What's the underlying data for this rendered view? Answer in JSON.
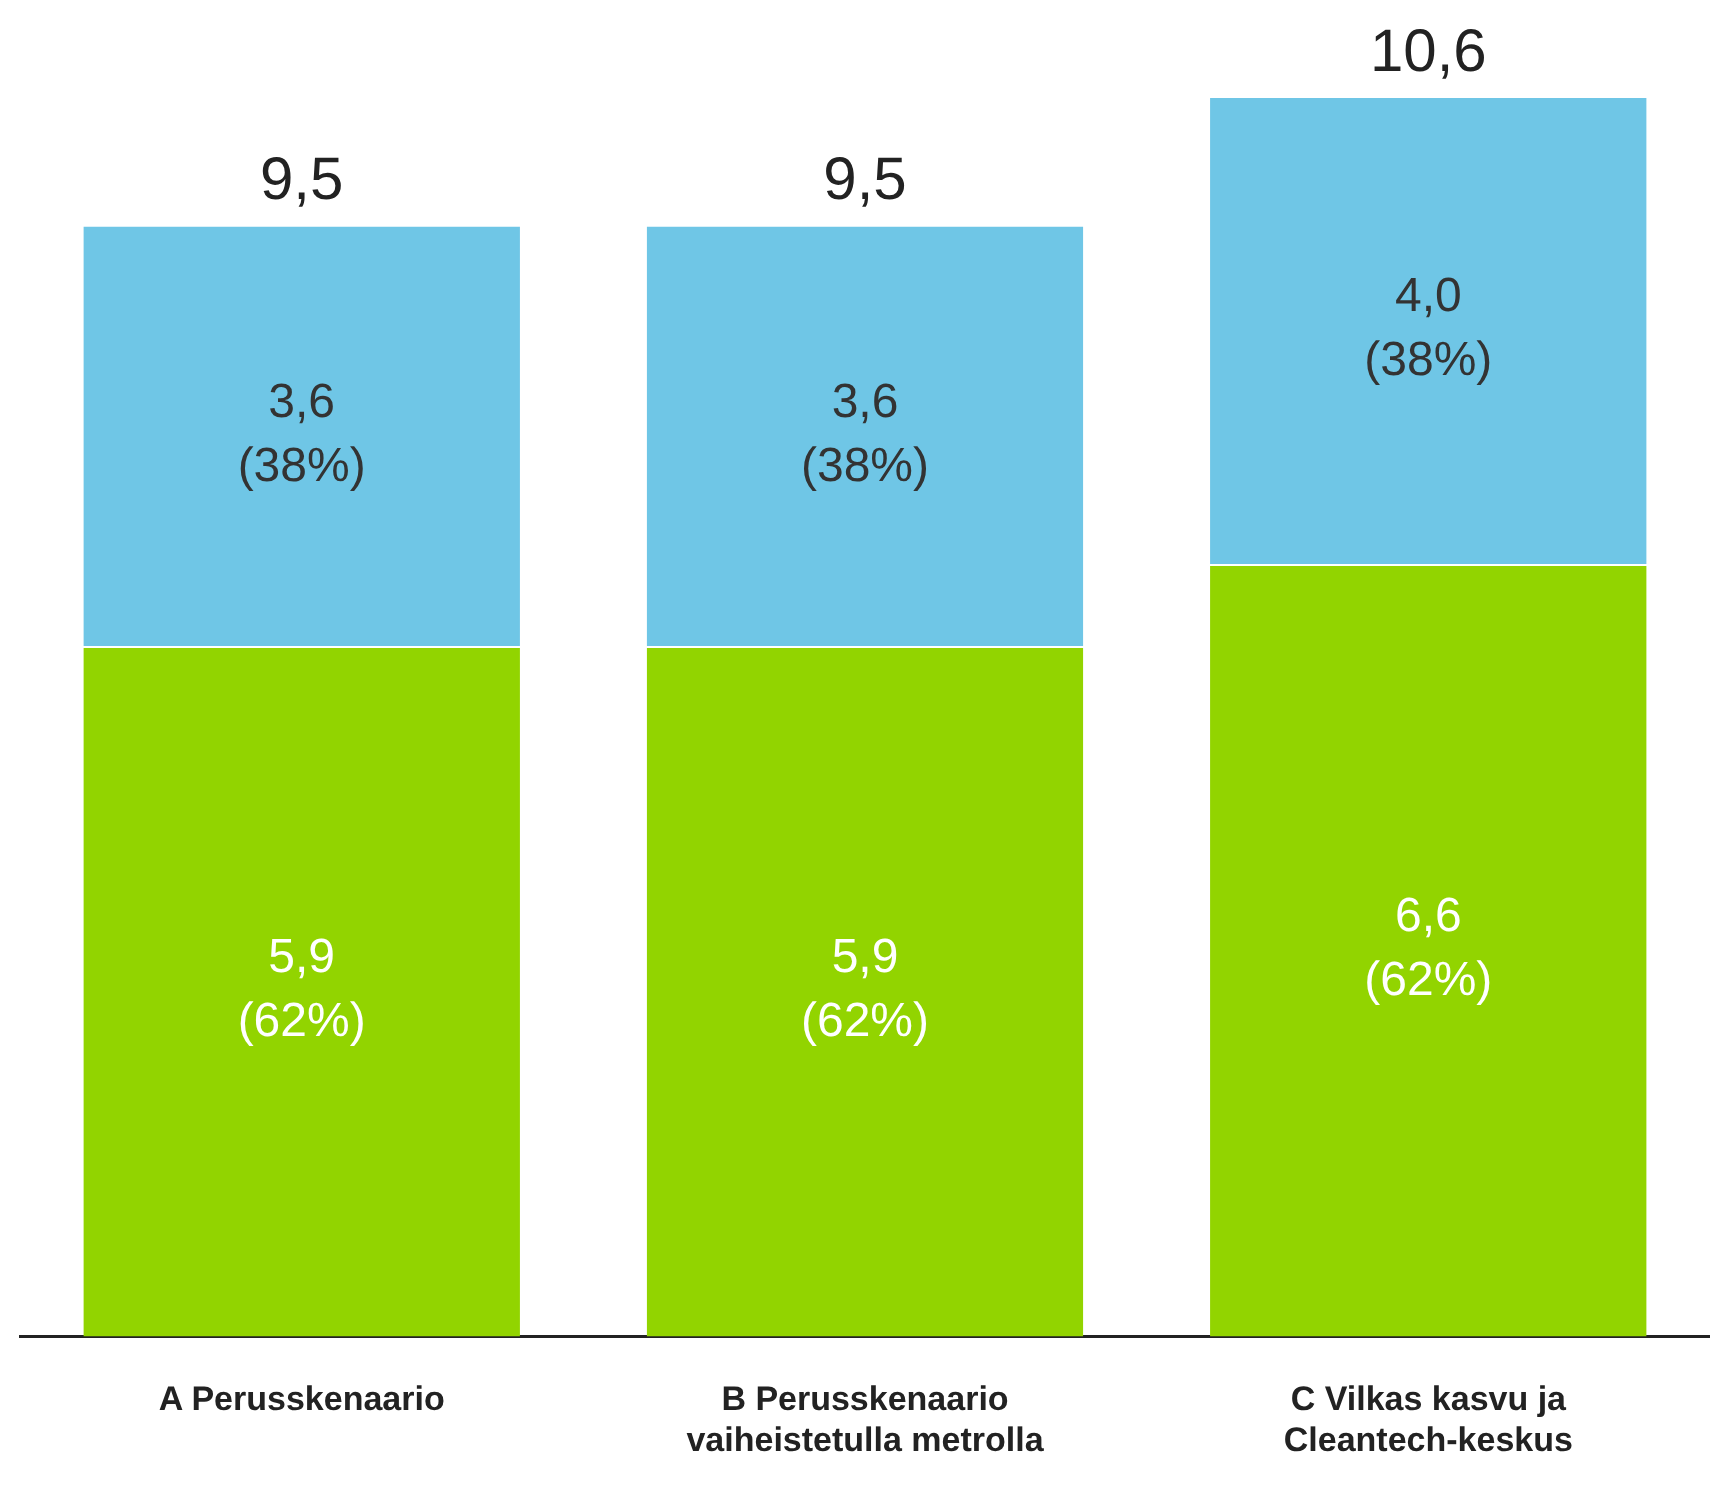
{
  "chart_data": {
    "type": "bar",
    "stacked": true,
    "categories": [
      "A Perusskenaario",
      "B Perusskenaario vaiheistetulla metrolla",
      "C Vilkas kasvu ja Cleantech-keskus"
    ],
    "series": [
      {
        "color": "#92d400",
        "values": [
          5.9,
          5.9,
          6.6
        ],
        "value_labels": [
          "5,9\n(62%)",
          "5,9\n(62%)",
          "6,6\n(62%)"
        ]
      },
      {
        "color": "#6fc6e6",
        "values": [
          3.6,
          3.6,
          4.0
        ],
        "value_labels": [
          "3,6\n(38%)",
          "3,6\n(38%)",
          "4,0\n(38%)"
        ]
      }
    ],
    "totals": [
      "9,5",
      "9,5",
      "10,6"
    ],
    "tick_labels": "x",
    "grid": false,
    "legend": false
  }
}
